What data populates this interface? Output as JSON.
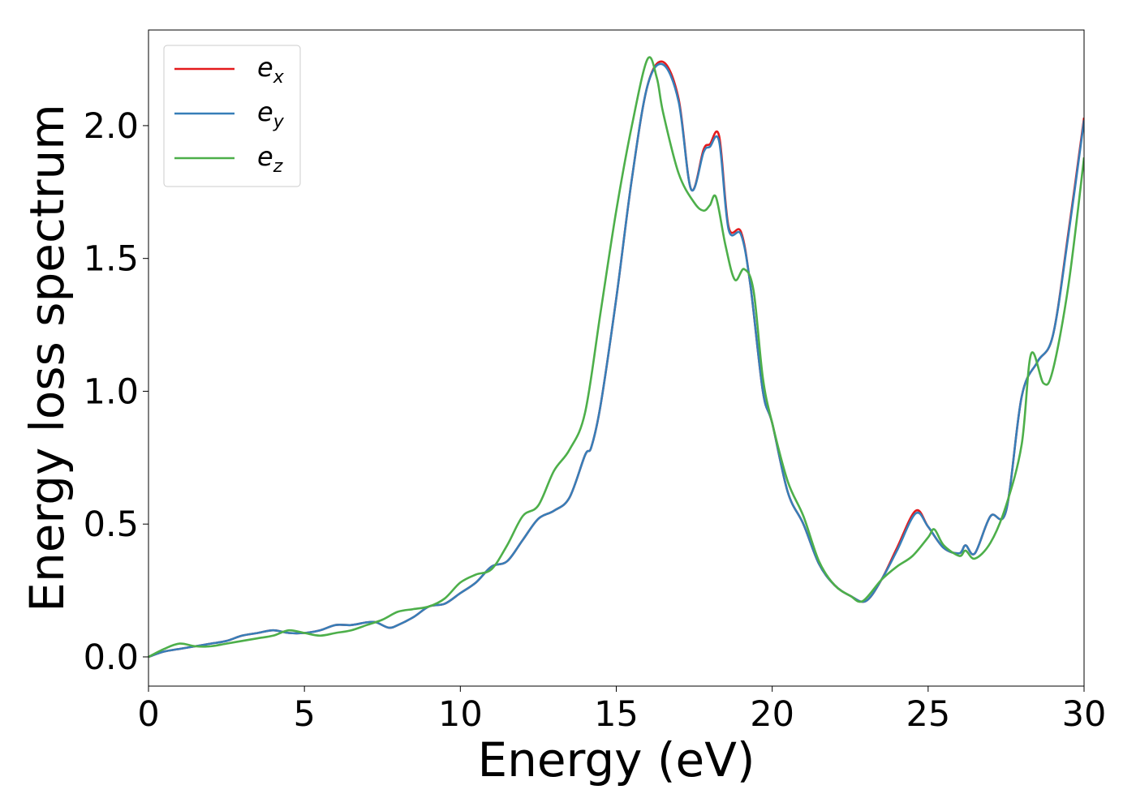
{
  "chart_data": {
    "type": "line",
    "xlabel": "Energy (eV)",
    "ylabel": "Energy loss spectrum",
    "xlim": [
      0,
      30
    ],
    "ylim": [
      -0.11,
      2.36
    ],
    "xticks": [
      0,
      5,
      10,
      15,
      20,
      25,
      30
    ],
    "xtick_labels": [
      "0",
      "5",
      "10",
      "15",
      "20",
      "25",
      "30"
    ],
    "yticks": [
      0.0,
      0.5,
      1.0,
      1.5,
      2.0
    ],
    "ytick_labels": [
      "0.0",
      "0.5",
      "1.0",
      "1.5",
      "2.0"
    ],
    "grid": false,
    "legend_position": "top-left",
    "series": [
      {
        "name": "e_x",
        "label_base": "e",
        "label_sub": "x",
        "color": "#e41a1c",
        "x": [
          0,
          0.5,
          1,
          1.5,
          2,
          2.5,
          3,
          3.5,
          4,
          4.5,
          5,
          5.5,
          6,
          6.5,
          7,
          7.3,
          7.7,
          8,
          8.5,
          9,
          9.5,
          10,
          10.5,
          11,
          11.5,
          12,
          12.5,
          13,
          13.5,
          14,
          14.2,
          14.5,
          15,
          15.5,
          16,
          16.5,
          17,
          17.4,
          17.8,
          18,
          18.3,
          18.6,
          19,
          19.3,
          19.7,
          20,
          20.5,
          21,
          21.5,
          22,
          22.5,
          23,
          23.5,
          24,
          24.6,
          25,
          25.5,
          26,
          26.2,
          26.5,
          27,
          27.5,
          28,
          28.5,
          29,
          29.5,
          30
        ],
        "y": [
          0.0,
          0.02,
          0.03,
          0.04,
          0.05,
          0.06,
          0.08,
          0.09,
          0.1,
          0.09,
          0.09,
          0.1,
          0.12,
          0.12,
          0.13,
          0.13,
          0.11,
          0.12,
          0.15,
          0.19,
          0.2,
          0.24,
          0.28,
          0.34,
          0.36,
          0.44,
          0.52,
          0.55,
          0.6,
          0.76,
          0.79,
          0.95,
          1.35,
          1.8,
          2.15,
          2.24,
          2.1,
          1.76,
          1.91,
          1.93,
          1.96,
          1.62,
          1.6,
          1.4,
          1.0,
          0.88,
          0.62,
          0.5,
          0.35,
          0.27,
          0.23,
          0.21,
          0.29,
          0.41,
          0.55,
          0.49,
          0.41,
          0.39,
          0.42,
          0.39,
          0.53,
          0.55,
          0.98,
          1.11,
          1.21,
          1.6,
          2.03
        ]
      },
      {
        "name": "e_y",
        "label_base": "e",
        "label_sub": "y",
        "color": "#377eb8",
        "x": [
          0,
          0.5,
          1,
          1.5,
          2,
          2.5,
          3,
          3.5,
          4,
          4.5,
          5,
          5.5,
          6,
          6.5,
          7,
          7.3,
          7.7,
          8,
          8.5,
          9,
          9.5,
          10,
          10.5,
          11,
          11.5,
          12,
          12.5,
          13,
          13.5,
          14,
          14.2,
          14.5,
          15,
          15.5,
          16,
          16.5,
          17,
          17.4,
          17.8,
          18,
          18.3,
          18.6,
          19,
          19.3,
          19.7,
          20,
          20.5,
          21,
          21.5,
          22,
          22.5,
          23,
          23.5,
          24,
          24.6,
          25,
          25.5,
          26,
          26.2,
          26.5,
          27,
          27.5,
          28,
          28.5,
          29,
          29.5,
          30
        ],
        "y": [
          0.0,
          0.02,
          0.03,
          0.04,
          0.05,
          0.06,
          0.08,
          0.09,
          0.1,
          0.09,
          0.09,
          0.1,
          0.12,
          0.12,
          0.13,
          0.13,
          0.11,
          0.12,
          0.15,
          0.19,
          0.2,
          0.24,
          0.28,
          0.34,
          0.36,
          0.44,
          0.52,
          0.55,
          0.6,
          0.76,
          0.79,
          0.95,
          1.35,
          1.8,
          2.15,
          2.23,
          2.09,
          1.76,
          1.9,
          1.92,
          1.94,
          1.61,
          1.59,
          1.4,
          1.0,
          0.88,
          0.62,
          0.5,
          0.35,
          0.27,
          0.23,
          0.21,
          0.29,
          0.4,
          0.54,
          0.49,
          0.41,
          0.39,
          0.42,
          0.39,
          0.53,
          0.55,
          0.98,
          1.11,
          1.21,
          1.59,
          2.02
        ]
      },
      {
        "name": "e_z",
        "label_base": "e",
        "label_sub": "z",
        "color": "#4daf4a",
        "x": [
          0,
          0.5,
          1,
          1.5,
          2,
          2.5,
          3,
          3.5,
          4,
          4.5,
          5,
          5.5,
          6,
          6.5,
          7,
          7.5,
          8,
          8.5,
          9,
          9.5,
          10,
          10.5,
          11,
          11.5,
          12,
          12.5,
          13,
          13.5,
          14,
          14.5,
          15,
          15.5,
          16,
          16.3,
          16.5,
          17,
          17.5,
          17.8,
          18,
          18.2,
          18.5,
          18.8,
          19.1,
          19.4,
          19.7,
          20,
          20.5,
          21,
          21.5,
          22,
          22.5,
          22.9,
          23.5,
          24,
          24.5,
          25,
          25.2,
          25.5,
          26,
          26.2,
          26.5,
          27,
          27.5,
          28,
          28.3,
          28.7,
          29,
          29.5,
          30
        ],
        "y": [
          0.0,
          0.03,
          0.05,
          0.04,
          0.04,
          0.05,
          0.06,
          0.07,
          0.08,
          0.1,
          0.09,
          0.08,
          0.09,
          0.1,
          0.12,
          0.14,
          0.17,
          0.18,
          0.19,
          0.22,
          0.28,
          0.31,
          0.33,
          0.42,
          0.53,
          0.57,
          0.7,
          0.78,
          0.92,
          1.3,
          1.68,
          2.0,
          2.25,
          2.18,
          2.05,
          1.82,
          1.71,
          1.68,
          1.7,
          1.73,
          1.55,
          1.42,
          1.46,
          1.38,
          1.05,
          0.88,
          0.66,
          0.53,
          0.36,
          0.27,
          0.23,
          0.21,
          0.29,
          0.34,
          0.38,
          0.45,
          0.48,
          0.42,
          0.38,
          0.4,
          0.37,
          0.43,
          0.57,
          0.8,
          1.14,
          1.03,
          1.08,
          1.4,
          1.88
        ]
      }
    ]
  }
}
